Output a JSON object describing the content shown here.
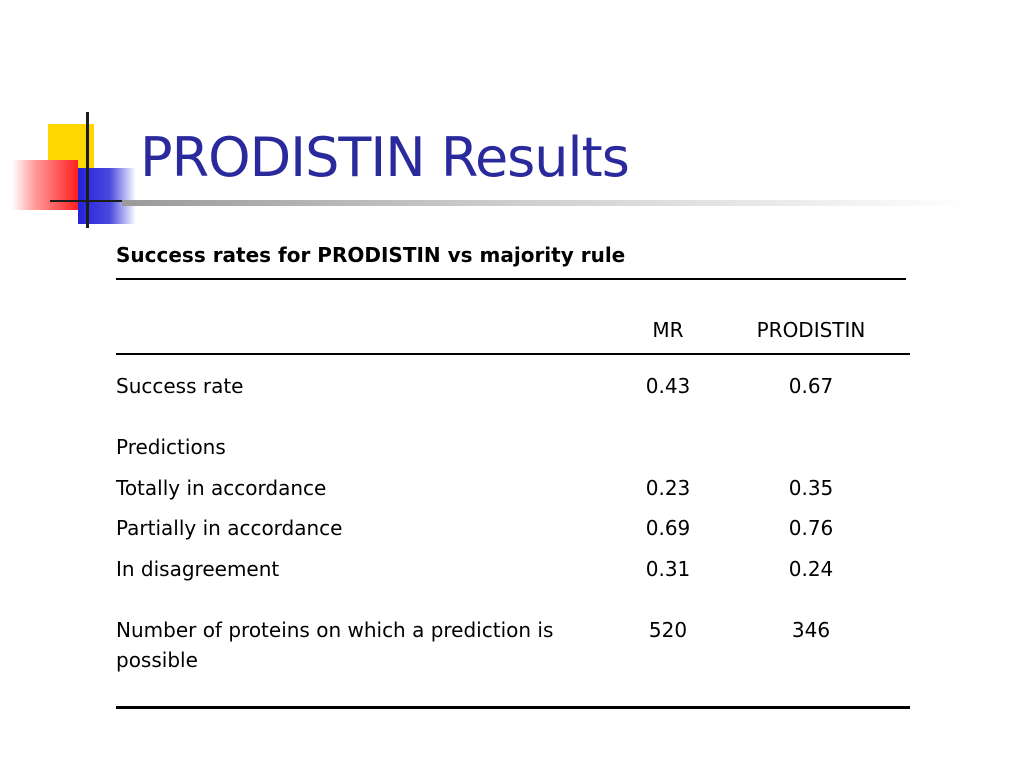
{
  "slide": {
    "title": "PRODISTIN Results"
  },
  "table": {
    "caption": "Success rates for PRODISTIN vs majority rule",
    "columns": [
      "MR",
      "PRODISTIN"
    ],
    "rows": [
      {
        "label": "Success rate",
        "mr": "0.43",
        "prodistin": "0.67"
      },
      {
        "label": "Predictions",
        "mr": "",
        "prodistin": ""
      },
      {
        "label": "Totally in accordance",
        "mr": "0.23",
        "prodistin": "0.35"
      },
      {
        "label": "Partially in accordance",
        "mr": "0.69",
        "prodistin": "0.76"
      },
      {
        "label": "In disagreement",
        "mr": "0.31",
        "prodistin": "0.24"
      },
      {
        "label": "Number of proteins on which a prediction is possible",
        "mr": "520",
        "prodistin": "346"
      }
    ]
  },
  "colors": {
    "title": "#2a2a9c",
    "accent_yellow": "#ffd700",
    "accent_red": "#ff2020",
    "accent_blue": "#2323d8"
  }
}
